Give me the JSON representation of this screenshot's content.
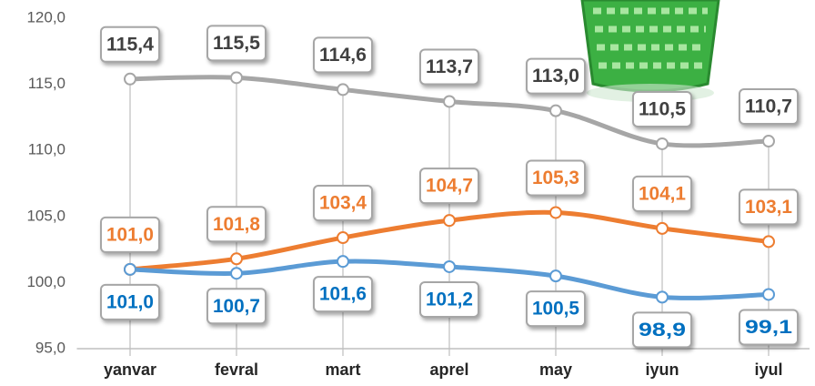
{
  "chart_data": {
    "type": "line",
    "categories": [
      "yanvar",
      "fevral",
      "mart",
      "aprel",
      "may",
      "iyun",
      "iyul"
    ],
    "series": [
      {
        "color": "#a6a6a6",
        "label_color": "#404040",
        "label_side": "above",
        "values": [
          115.4,
          115.5,
          114.6,
          113.7,
          113.0,
          110.5,
          110.7
        ],
        "value_labels": [
          "115,4",
          "115,5",
          "114,6",
          "113,7",
          "113,0",
          "110,5",
          "110,7"
        ]
      },
      {
        "color": "#ed7d31",
        "label_color": "#ed7d31",
        "label_side": "above",
        "values": [
          101.0,
          101.8,
          103.4,
          104.7,
          105.3,
          104.1,
          103.1
        ],
        "value_labels": [
          "101,0",
          "101,8",
          "103,4",
          "104,7",
          "105,3",
          "104,1",
          "103,1"
        ]
      },
      {
        "color": "#5b9bd5",
        "label_color": "#0070c0",
        "label_side": "below",
        "values": [
          101.0,
          100.7,
          101.6,
          101.2,
          100.5,
          98.9,
          99.1
        ],
        "value_labels": [
          "101,0",
          "100,7",
          "101,6",
          "101,2",
          "100,5",
          "98,9",
          "99,1"
        ]
      }
    ],
    "ylim": [
      95,
      120
    ],
    "yticks": [
      {
        "value": 95,
        "label": "95,0"
      },
      {
        "value": 100,
        "label": "100,0"
      },
      {
        "value": 105,
        "label": "105,0"
      },
      {
        "value": 110,
        "label": "110,0"
      },
      {
        "value": 115,
        "label": "115,0"
      },
      {
        "value": 120,
        "label": "120,0"
      }
    ],
    "grid": false
  }
}
